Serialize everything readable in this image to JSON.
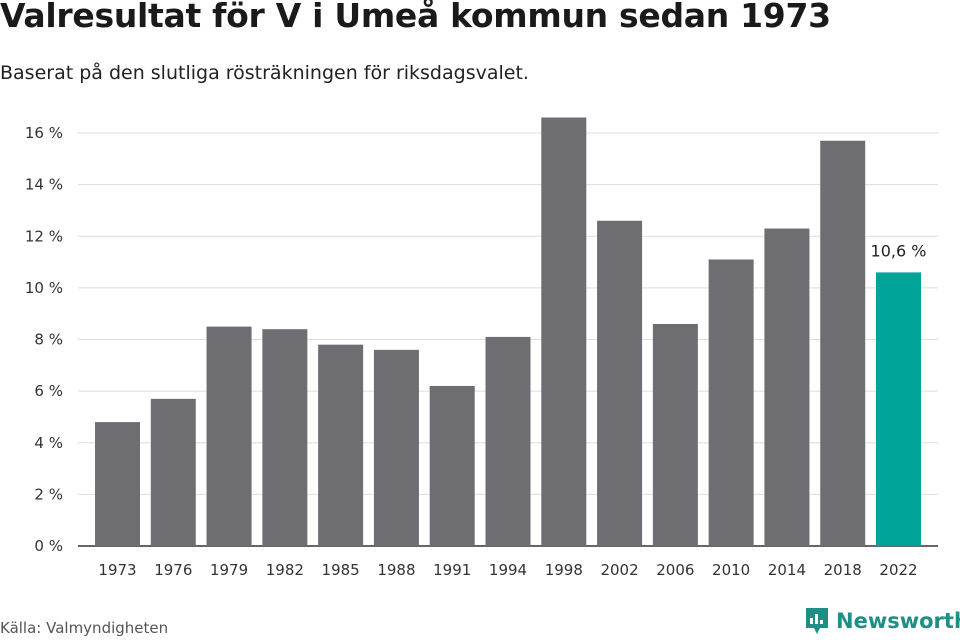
{
  "header": {
    "title": "Valresultat för V i Umeå kommun sedan 1973",
    "subtitle": "Baserat på den slutliga rösträkningen för riksdagsvalet."
  },
  "footer": {
    "source": "Källa: Valmyndigheten",
    "brand": "Newsworthy"
  },
  "colors": {
    "bar": "#6e6d72",
    "highlight": "#00a499",
    "grid": "#dddddd",
    "axis": "#333333",
    "brand": "#1f8f86"
  },
  "chart_data": {
    "type": "bar",
    "categories": [
      "1973",
      "1976",
      "1979",
      "1982",
      "1985",
      "1988",
      "1991",
      "1994",
      "1998",
      "2002",
      "2006",
      "2010",
      "2014",
      "2018",
      "2022"
    ],
    "values": [
      4.8,
      5.7,
      8.5,
      8.4,
      7.8,
      7.6,
      6.2,
      8.1,
      16.6,
      12.6,
      8.6,
      11.1,
      12.3,
      15.7,
      10.6
    ],
    "highlight_index": 14,
    "data_labels": [
      {
        "category": "2022",
        "text": "10,6 %"
      }
    ],
    "ylim": [
      0,
      16
    ],
    "yticks": [
      0,
      2,
      4,
      6,
      8,
      10,
      12,
      14,
      16
    ],
    "ytick_labels": [
      "0 %",
      "2 %",
      "4 %",
      "6 %",
      "8 %",
      "10 %",
      "12 %",
      "14 %",
      "16 %"
    ],
    "title": "Valresultat för V i Umeå kommun sedan 1973",
    "xlabel": "",
    "ylabel": "",
    "grid": true,
    "legend": "none"
  }
}
